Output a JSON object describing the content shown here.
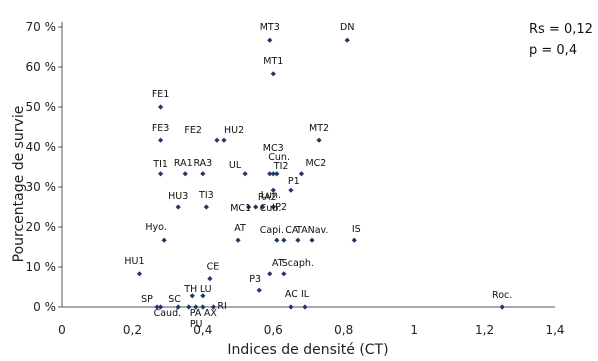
{
  "chart_data": {
    "type": "scatter",
    "xlabel": "Indices de densité (CT)",
    "ylabel": "Pourcentage de survie",
    "xlim": [
      0,
      1.4
    ],
    "ylim": [
      0,
      70
    ],
    "x_ticks": [
      "0",
      "0,2",
      "0,4",
      "0,6",
      "0,8",
      "1",
      "1,2",
      "1,4"
    ],
    "y_ticks": [
      "0 %",
      "10 %",
      "20 %",
      "30 %",
      "40 %",
      "50 %",
      "60 %",
      "70 %"
    ],
    "grid": false,
    "marker_color": "#1f3864",
    "annotations": [
      "Rs = 0,12",
      "p = 0,4"
    ],
    "points": [
      {
        "label": "MT3",
        "x": 0.59,
        "y": 66.7
      },
      {
        "label": "DN",
        "x": 0.81,
        "y": 66.7
      },
      {
        "label": "MT1",
        "x": 0.6,
        "y": 58.3
      },
      {
        "label": "FE1",
        "x": 0.28,
        "y": 50
      },
      {
        "label": "FE3",
        "x": 0.28,
        "y": 41.7
      },
      {
        "label": "FE2",
        "x": 0.44,
        "y": 41.7
      },
      {
        "label": "HU2",
        "x": 0.46,
        "y": 41.7
      },
      {
        "label": "MT2",
        "x": 0.73,
        "y": 41.7
      },
      {
        "label": "TI1",
        "x": 0.28,
        "y": 33.3
      },
      {
        "label": "RA1",
        "x": 0.35,
        "y": 33.3
      },
      {
        "label": "RA3",
        "x": 0.4,
        "y": 33.3
      },
      {
        "label": "UL",
        "x": 0.52,
        "y": 33.3
      },
      {
        "label": "MC3",
        "x": 0.59,
        "y": 33.3
      },
      {
        "label": "Cun.",
        "x": 0.6,
        "y": 33.3
      },
      {
        "label": "TI2",
        "x": 0.61,
        "y": 33.3
      },
      {
        "label": "MC2",
        "x": 0.68,
        "y": 33.3
      },
      {
        "label": "RA2",
        "x": 0.6,
        "y": 29.2
      },
      {
        "label": "P1",
        "x": 0.65,
        "y": 29.2
      },
      {
        "label": "HU3",
        "x": 0.33,
        "y": 25
      },
      {
        "label": "TI3",
        "x": 0.41,
        "y": 25
      },
      {
        "label": "Lun.",
        "x": 0.57,
        "y": 25
      },
      {
        "label": "P2",
        "x": 0.6,
        "y": 25
      },
      {
        "label": "MC1",
        "x": 0.53,
        "y": 25
      },
      {
        "label": "Cub.",
        "x": 0.55,
        "y": 25
      },
      {
        "label": "Hyo.",
        "x": 0.29,
        "y": 16.7
      },
      {
        "label": "AT",
        "x": 0.5,
        "y": 16.7
      },
      {
        "label": "Capi.",
        "x": 0.61,
        "y": 16.7
      },
      {
        "label": "CA",
        "x": 0.63,
        "y": 16.7
      },
      {
        "label": "TA",
        "x": 0.67,
        "y": 16.7
      },
      {
        "label": "Nav.",
        "x": 0.71,
        "y": 16.7
      },
      {
        "label": "IS",
        "x": 0.83,
        "y": 16.7
      },
      {
        "label": "HU1",
        "x": 0.22,
        "y": 8.3
      },
      {
        "label": "CE",
        "x": 0.42,
        "y": 7.1
      },
      {
        "label": "AT",
        "x": 0.59,
        "y": 8.3
      },
      {
        "label": "Scaph.",
        "x": 0.63,
        "y": 8.3
      },
      {
        "label": "P3",
        "x": 0.56,
        "y": 4.2
      },
      {
        "label": "TH",
        "x": 0.37,
        "y": 2.8
      },
      {
        "label": "LU",
        "x": 0.4,
        "y": 2.8
      },
      {
        "label": "SP",
        "x": 0.27,
        "y": 0
      },
      {
        "label": "SC",
        "x": 0.33,
        "y": 0
      },
      {
        "label": "Caud.",
        "x": 0.28,
        "y": 0
      },
      {
        "label": "PA",
        "x": 0.36,
        "y": 0
      },
      {
        "label": "AX",
        "x": 0.4,
        "y": 0
      },
      {
        "label": "PU",
        "x": 0.38,
        "y": 0
      },
      {
        "label": "RI",
        "x": 0.43,
        "y": 0
      },
      {
        "label": "AC",
        "x": 0.65,
        "y": 0
      },
      {
        "label": "IL",
        "x": 0.69,
        "y": 0
      },
      {
        "label": "Roc.",
        "x": 1.25,
        "y": 0
      }
    ]
  }
}
